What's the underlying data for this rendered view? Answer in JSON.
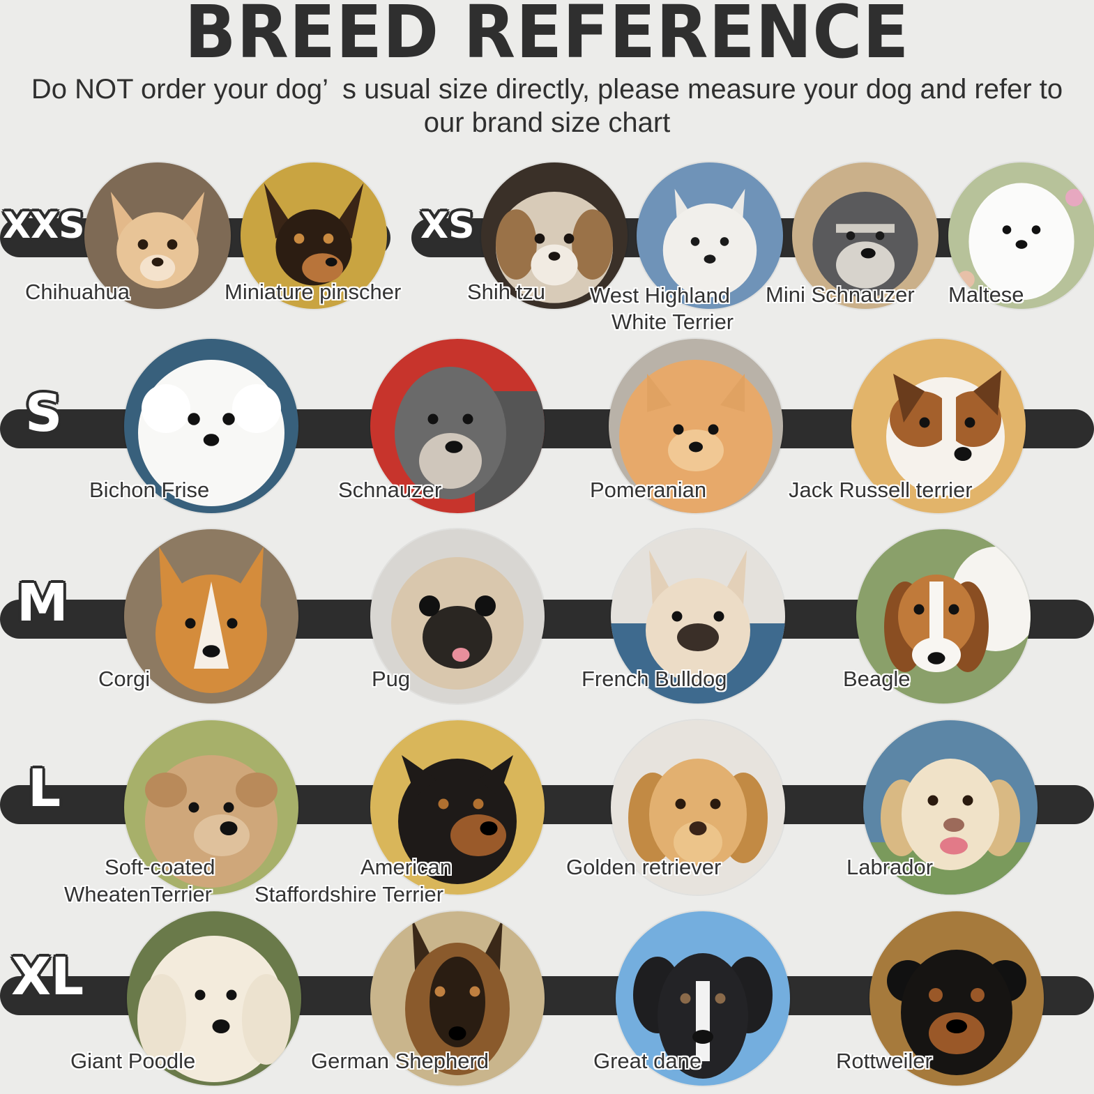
{
  "header": {
    "title": "BREED REFERENCE",
    "subtitle": "Do NOT order your dog’ s usual size directly, please measure your dog and refer to our brand size chart"
  },
  "sizes": {
    "xxs": "XXS",
    "xs": "XS",
    "s": "S",
    "m": "M",
    "l": "L",
    "xl": "XL"
  },
  "breeds": {
    "chihuahua": "Chihuahua",
    "miniature_pinscher": "Miniature pinscher",
    "shih_tzu": "Shih tzu",
    "west_highland_1": "West Highland",
    "west_highland_2": "White Terrier",
    "mini_schnauzer": "Mini Schnauzer",
    "maltese": "Maltese",
    "bichon_frise": "Bichon Frise",
    "schnauzer": "Schnauzer",
    "pomeranian": "Pomeranian",
    "jack_russell": "Jack Russell terrier",
    "corgi": "Corgi",
    "pug": "Pug",
    "french_bulldog": "French Bulldog",
    "beagle": "Beagle",
    "wheaten_1": "Soft-coated",
    "wheaten_2": "WheatenTerrier",
    "staffordshire_1": "American",
    "staffordshire_2": "Staffordshire Terrier",
    "golden_retriever": "Golden retriever",
    "labrador": "Labrador",
    "giant_poodle": "Giant Poodle",
    "german_shepherd": "German Shepherd",
    "great_dane": "Great dane",
    "rottweiler": "Rottweiler"
  }
}
